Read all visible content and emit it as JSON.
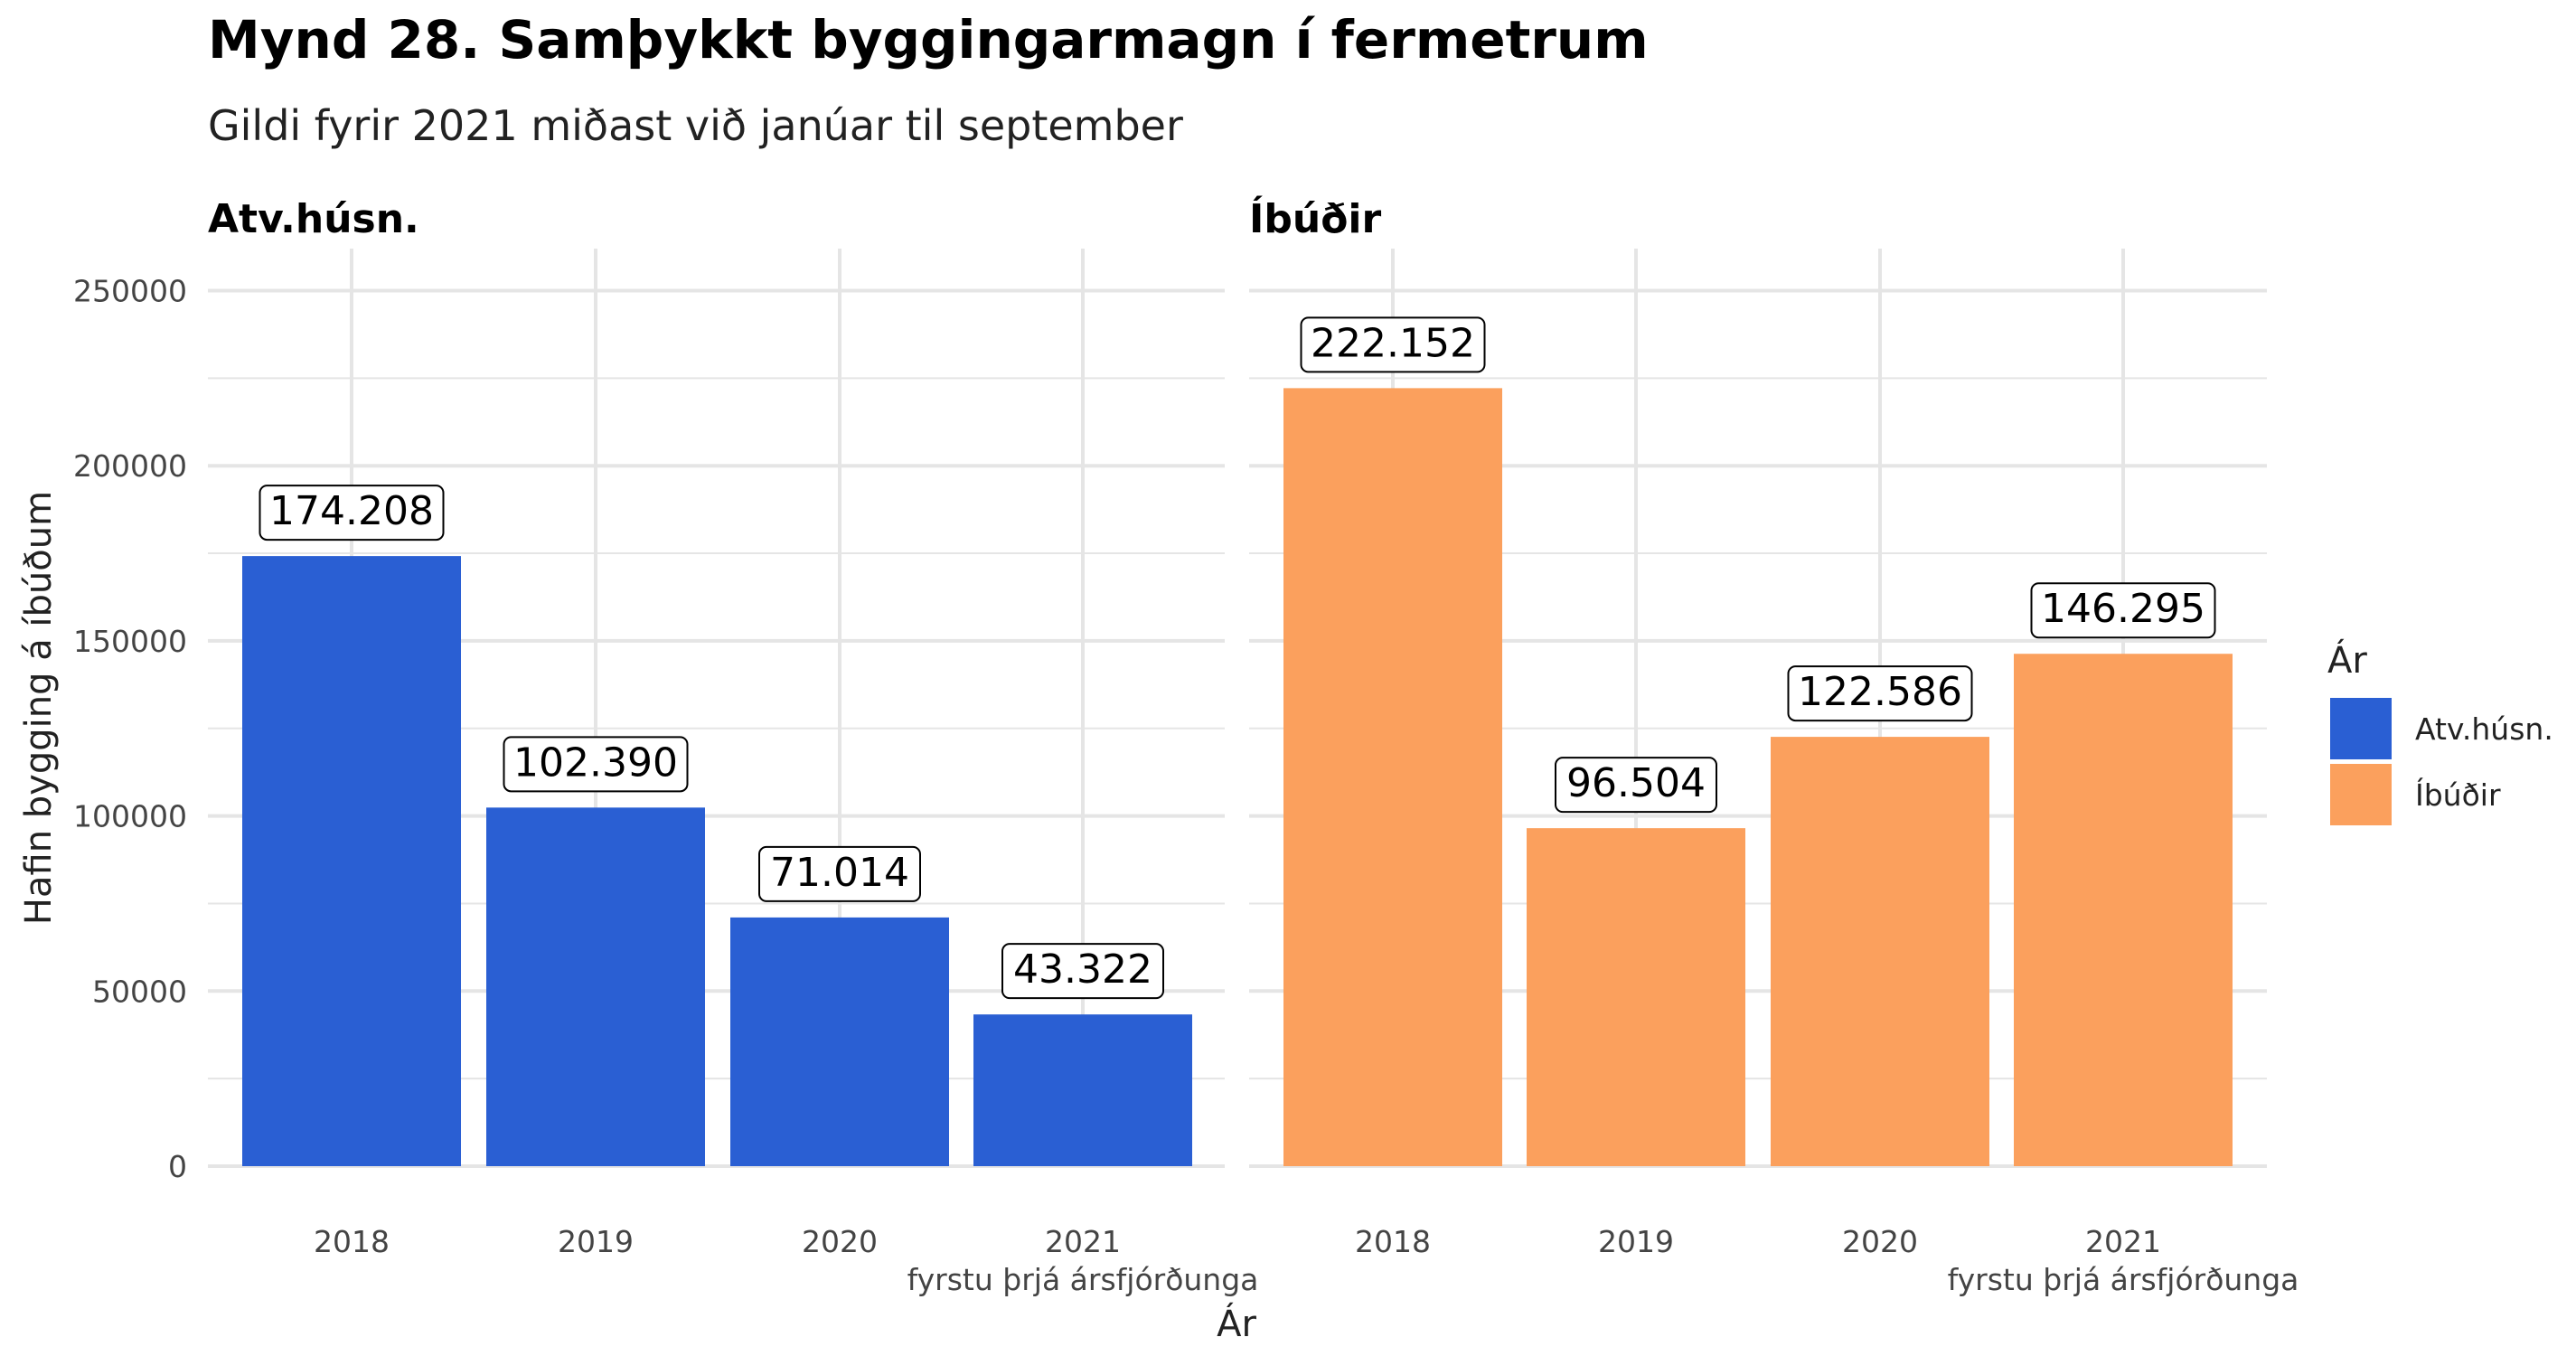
{
  "chart_data": {
    "type": "bar",
    "title": "Mynd 28. Samþykkt byggingarmagn í fermetrum",
    "subtitle": "Gildi fyrir 2021 miðast við janúar til september",
    "xlabel": "Ár",
    "ylabel": "Hafin bygging á íbúðum",
    "ylim": [
      0,
      262000
    ],
    "yticks": [
      0,
      50000,
      100000,
      150000,
      200000,
      250000
    ],
    "grid": true,
    "categories": [
      [
        "2018"
      ],
      [
        "2019"
      ],
      [
        "2020"
      ],
      [
        "2021",
        "fyrstu þrjá ársfjórðunga"
      ]
    ],
    "legend": {
      "title": "Ár",
      "position": "right",
      "items": [
        {
          "label": "Atv.húsn.",
          "color": "#2a5fd3"
        },
        {
          "label": "Íbúðir",
          "color": "#fba05d"
        }
      ]
    },
    "panels": [
      {
        "title": "Atv.húsn.",
        "color": "#2a5fd3",
        "values": [
          174208,
          102390,
          71014,
          43322
        ],
        "labels": [
          "174.208",
          "102.390",
          "71.014",
          "43.322"
        ]
      },
      {
        "title": "Íbúðir",
        "color": "#fba05d",
        "values": [
          222152,
          96504,
          122586,
          146295
        ],
        "labels": [
          "222.152",
          "96.504",
          "122.586",
          "146.295"
        ]
      }
    ]
  }
}
